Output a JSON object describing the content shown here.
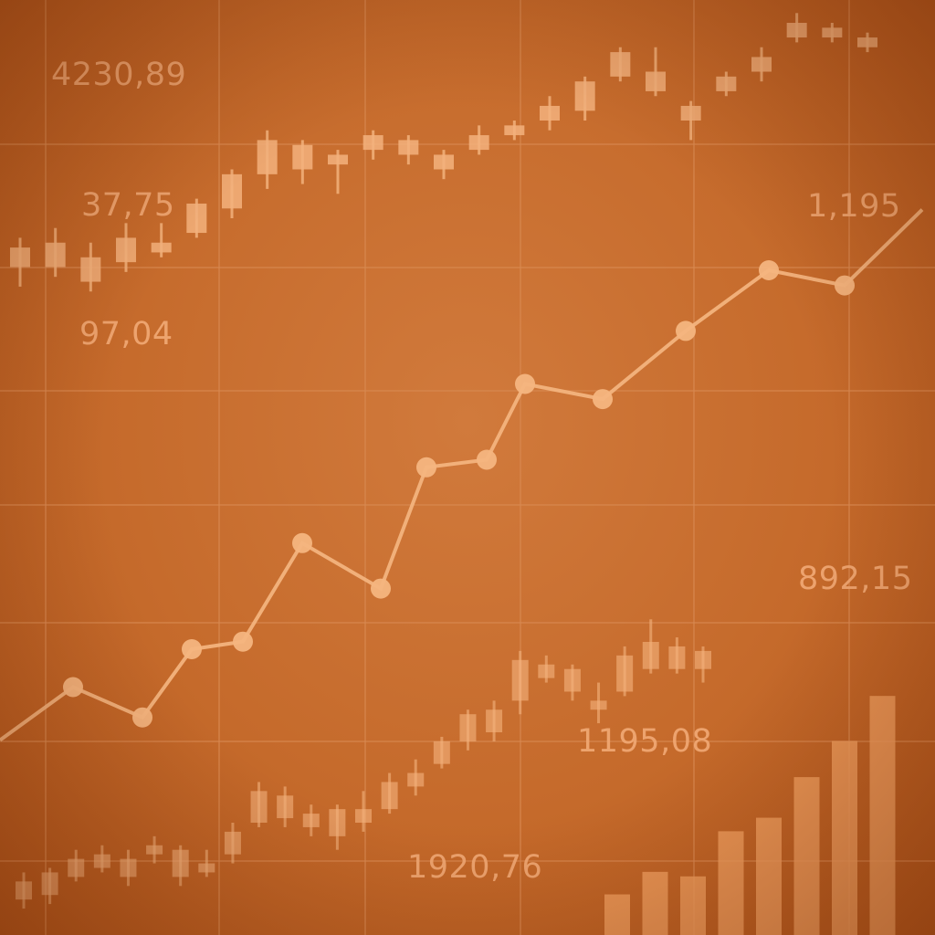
{
  "colors": {
    "background": "#c66b2c",
    "grid": "#d98a52",
    "candle": "#f3b27c",
    "line": "#f4b580",
    "bar": "#ef9d5e",
    "label": "#f0a772"
  },
  "value_labels": [
    {
      "text": "4230,89",
      "pos": "top-left"
    },
    {
      "text": "37,75",
      "pos": "upper-left"
    },
    {
      "text": "97,04",
      "pos": "left"
    },
    {
      "text": "1,195",
      "pos": "upper-right"
    },
    {
      "text": "892,15",
      "pos": "right"
    },
    {
      "text": "1195,08",
      "pos": "lower-center"
    },
    {
      "text": "1920,76",
      "pos": "bottom-center"
    }
  ],
  "chart_data": [
    {
      "type": "candlestick",
      "name": "",
      "title": "",
      "grid": true,
      "ylim": [
        0,
        100
      ],
      "candles": [
        {
          "o": 50,
          "c": 54,
          "h": 56,
          "l": 46
        },
        {
          "o": 50,
          "c": 55,
          "h": 58,
          "l": 48
        },
        {
          "o": 47,
          "c": 52,
          "h": 55,
          "l": 45
        },
        {
          "o": 51,
          "c": 56,
          "h": 59,
          "l": 49
        },
        {
          "o": 53,
          "c": 55,
          "h": 59,
          "l": 52
        },
        {
          "o": 57,
          "c": 63,
          "h": 64,
          "l": 56
        },
        {
          "o": 62,
          "c": 69,
          "h": 70,
          "l": 60
        },
        {
          "o": 69,
          "c": 76,
          "h": 78,
          "l": 66
        },
        {
          "o": 70,
          "c": 75,
          "h": 76,
          "l": 67
        },
        {
          "o": 71,
          "c": 73,
          "h": 74,
          "l": 65
        },
        {
          "o": 74,
          "c": 77,
          "h": 78,
          "l": 72
        },
        {
          "o": 73,
          "c": 76,
          "h": 77,
          "l": 71
        },
        {
          "o": 73,
          "c": 70,
          "h": 74,
          "l": 68
        },
        {
          "o": 74,
          "c": 77,
          "h": 79,
          "l": 73
        },
        {
          "o": 77,
          "c": 79,
          "h": 80,
          "l": 76
        },
        {
          "o": 80,
          "c": 83,
          "h": 85,
          "l": 78
        },
        {
          "o": 82,
          "c": 88,
          "h": 89,
          "l": 80
        },
        {
          "o": 89,
          "c": 94,
          "h": 95,
          "l": 88
        },
        {
          "o": 90,
          "c": 86,
          "h": 95,
          "l": 85
        },
        {
          "o": 83,
          "c": 80,
          "h": 84,
          "l": 76
        },
        {
          "o": 86,
          "c": 89,
          "h": 90,
          "l": 85
        },
        {
          "o": 90,
          "c": 93,
          "h": 95,
          "l": 88
        },
        {
          "o": 97,
          "c": 100,
          "h": 102,
          "l": 96
        },
        {
          "o": 97,
          "c": 99,
          "h": 100,
          "l": 96
        },
        {
          "o": 95,
          "c": 97,
          "h": 98,
          "l": 94
        }
      ]
    },
    {
      "type": "line",
      "name": "",
      "title": "",
      "grid": true,
      "ylim": [
        0,
        100
      ],
      "values": [
        18,
        25,
        21,
        30,
        31,
        44,
        38,
        54,
        55,
        65,
        63,
        72,
        80,
        78,
        88
      ]
    },
    {
      "type": "candlestick",
      "name": "",
      "title": "",
      "grid": true,
      "ylim": [
        0,
        100
      ],
      "candles": [
        {
          "o": 3,
          "c": 7,
          "h": 9,
          "l": 1
        },
        {
          "o": 4,
          "c": 9,
          "h": 10,
          "l": 2
        },
        {
          "o": 8,
          "c": 12,
          "h": 14,
          "l": 7
        },
        {
          "o": 10,
          "c": 13,
          "h": 15,
          "l": 9
        },
        {
          "o": 8,
          "c": 12,
          "h": 14,
          "l": 6
        },
        {
          "o": 13,
          "c": 15,
          "h": 17,
          "l": 11
        },
        {
          "o": 8,
          "c": 14,
          "h": 15,
          "l": 6
        },
        {
          "o": 9,
          "c": 11,
          "h": 14,
          "l": 8
        },
        {
          "o": 13,
          "c": 18,
          "h": 20,
          "l": 11
        },
        {
          "o": 20,
          "c": 27,
          "h": 29,
          "l": 19
        },
        {
          "o": 21,
          "c": 26,
          "h": 28,
          "l": 19
        },
        {
          "o": 19,
          "c": 22,
          "h": 24,
          "l": 17
        },
        {
          "o": 17,
          "c": 23,
          "h": 24,
          "l": 14
        },
        {
          "o": 20,
          "c": 23,
          "h": 27,
          "l": 18
        },
        {
          "o": 23,
          "c": 29,
          "h": 31,
          "l": 22
        },
        {
          "o": 28,
          "c": 31,
          "h": 34,
          "l": 26
        },
        {
          "o": 33,
          "c": 38,
          "h": 39,
          "l": 32
        },
        {
          "o": 38,
          "c": 44,
          "h": 45,
          "l": 36
        },
        {
          "o": 40,
          "c": 45,
          "h": 47,
          "l": 38
        },
        {
          "o": 47,
          "c": 56,
          "h": 58,
          "l": 44
        },
        {
          "o": 52,
          "c": 55,
          "h": 57,
          "l": 51
        },
        {
          "o": 49,
          "c": 54,
          "h": 55,
          "l": 47
        },
        {
          "o": 45,
          "c": 47,
          "h": 51,
          "l": 42
        },
        {
          "o": 49,
          "c": 57,
          "h": 59,
          "l": 48
        },
        {
          "o": 54,
          "c": 60,
          "h": 65,
          "l": 53
        },
        {
          "o": 54,
          "c": 59,
          "h": 61,
          "l": 53
        },
        {
          "o": 54,
          "c": 58,
          "h": 59,
          "l": 51
        }
      ]
    },
    {
      "type": "bar",
      "name": "",
      "title": "",
      "grid": false,
      "ylim": [
        0,
        100
      ],
      "values": [
        9,
        14,
        13,
        23,
        26,
        35,
        43,
        53
      ]
    }
  ]
}
